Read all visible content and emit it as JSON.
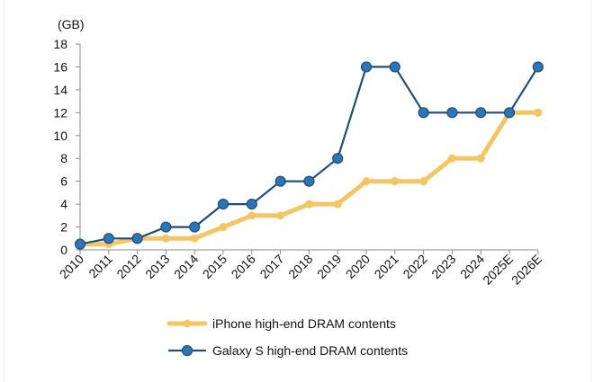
{
  "chart_data": {
    "type": "line",
    "title": "",
    "xlabel": "",
    "ylabel": "(GB)",
    "ylim": [
      0,
      18
    ],
    "yticks": [
      0,
      2,
      4,
      6,
      8,
      10,
      12,
      14,
      16,
      18
    ],
    "grid": false,
    "legend_position": "bottom",
    "categories": [
      "2010",
      "2011",
      "2012",
      "2013",
      "2014",
      "2015",
      "2016",
      "2017",
      "2018",
      "2019",
      "2020",
      "2021",
      "2022",
      "2023",
      "2024",
      "2025E",
      "2026E"
    ],
    "series": [
      {
        "name": "iPhone high-end DRAM contents",
        "color": "#F5C563",
        "values": [
          0.5,
          0.5,
          1,
          1,
          1,
          2,
          3,
          3,
          4,
          4,
          6,
          6,
          6,
          8,
          8,
          12,
          12
        ]
      },
      {
        "name": "Galaxy S high-end DRAM contents",
        "color": "#1F4E79",
        "marker_color": "#2E75B6",
        "values": [
          0.5,
          1,
          1,
          2,
          2,
          4,
          4,
          6,
          6,
          8,
          16,
          16,
          12,
          12,
          12,
          12,
          16
        ]
      }
    ]
  }
}
